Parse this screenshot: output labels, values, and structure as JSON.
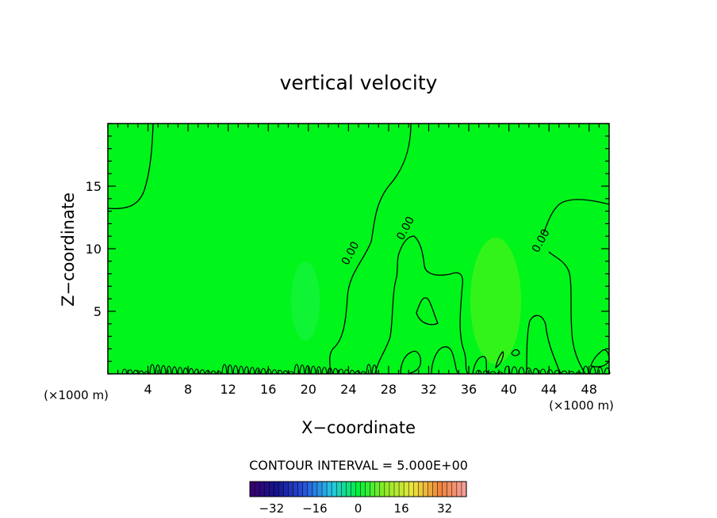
{
  "chart_data": {
    "type": "contour",
    "title": "vertical velocity",
    "xlabel": "X−coordinate",
    "ylabel": "Z−coordinate",
    "x_unit_label": "(×1000 m)",
    "y_unit_label": "(×1000 m)",
    "xlim": [
      0,
      50
    ],
    "ylim": [
      0,
      20
    ],
    "x_ticks": [
      4,
      8,
      12,
      16,
      20,
      24,
      28,
      32,
      36,
      40,
      44,
      48
    ],
    "y_ticks": [
      5,
      10,
      15
    ],
    "contour_labels": [
      {
        "text": "0.00",
        "x": 24.5,
        "z": 9.5
      },
      {
        "text": "0.00",
        "x": 30.0,
        "z": 11.5
      },
      {
        "text": "0.00",
        "x": 43.5,
        "z": 10.5
      }
    ],
    "contour_interval_text": "CONTOUR INTERVAL = 5.000E+00",
    "colorbar": {
      "min": -40,
      "max": 40,
      "ticks": [
        -32,
        -16,
        0,
        16,
        32
      ],
      "tick_labels": [
        "−32",
        "−16",
        "0",
        "16",
        "32"
      ]
    },
    "field_color": "#00f51a"
  }
}
